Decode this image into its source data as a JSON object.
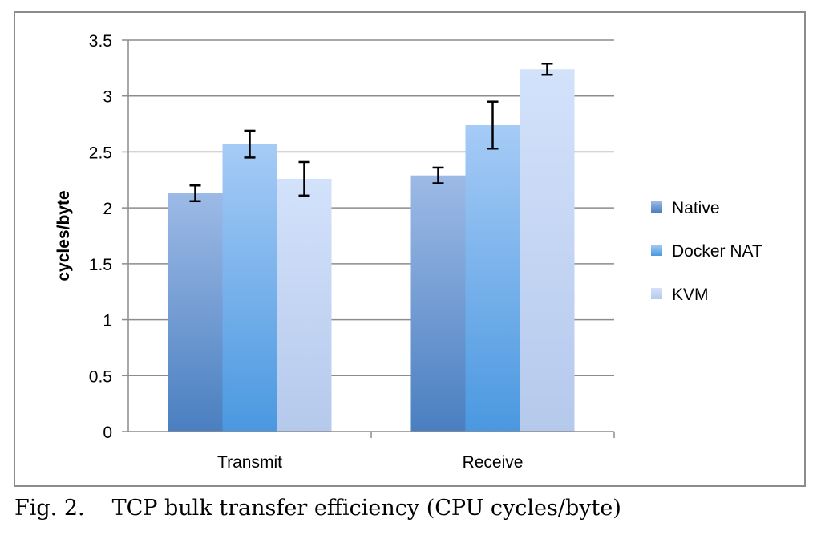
{
  "caption": {
    "label": "Fig. 2.",
    "text": "TCP bulk transfer efficiency (CPU cycles/byte)"
  },
  "chart_data": {
    "type": "bar",
    "title": "",
    "xlabel": "",
    "ylabel": "cycles/byte",
    "ylim": [
      0,
      3.5
    ],
    "yticks": [
      "0",
      "0.5",
      "1",
      "1.5",
      "2",
      "2.5",
      "3",
      "3.5"
    ],
    "grid": true,
    "legend_position": "right",
    "categories": [
      "Transmit",
      "Receive"
    ],
    "series": [
      {
        "name": "Native",
        "values": [
          2.13,
          2.29
        ],
        "error": [
          0.07,
          0.07
        ],
        "color": "#4a7fc0",
        "color_light": "#9dbae6"
      },
      {
        "name": "Docker NAT",
        "values": [
          2.57,
          2.74
        ],
        "error": [
          0.12,
          0.21
        ],
        "color": "#4a98e0",
        "color_light": "#a6cbf6"
      },
      {
        "name": "KVM",
        "values": [
          2.26,
          3.24
        ],
        "error": [
          0.15,
          0.05
        ],
        "color": "#b5c9ec",
        "color_light": "#d3e2fb"
      }
    ]
  }
}
